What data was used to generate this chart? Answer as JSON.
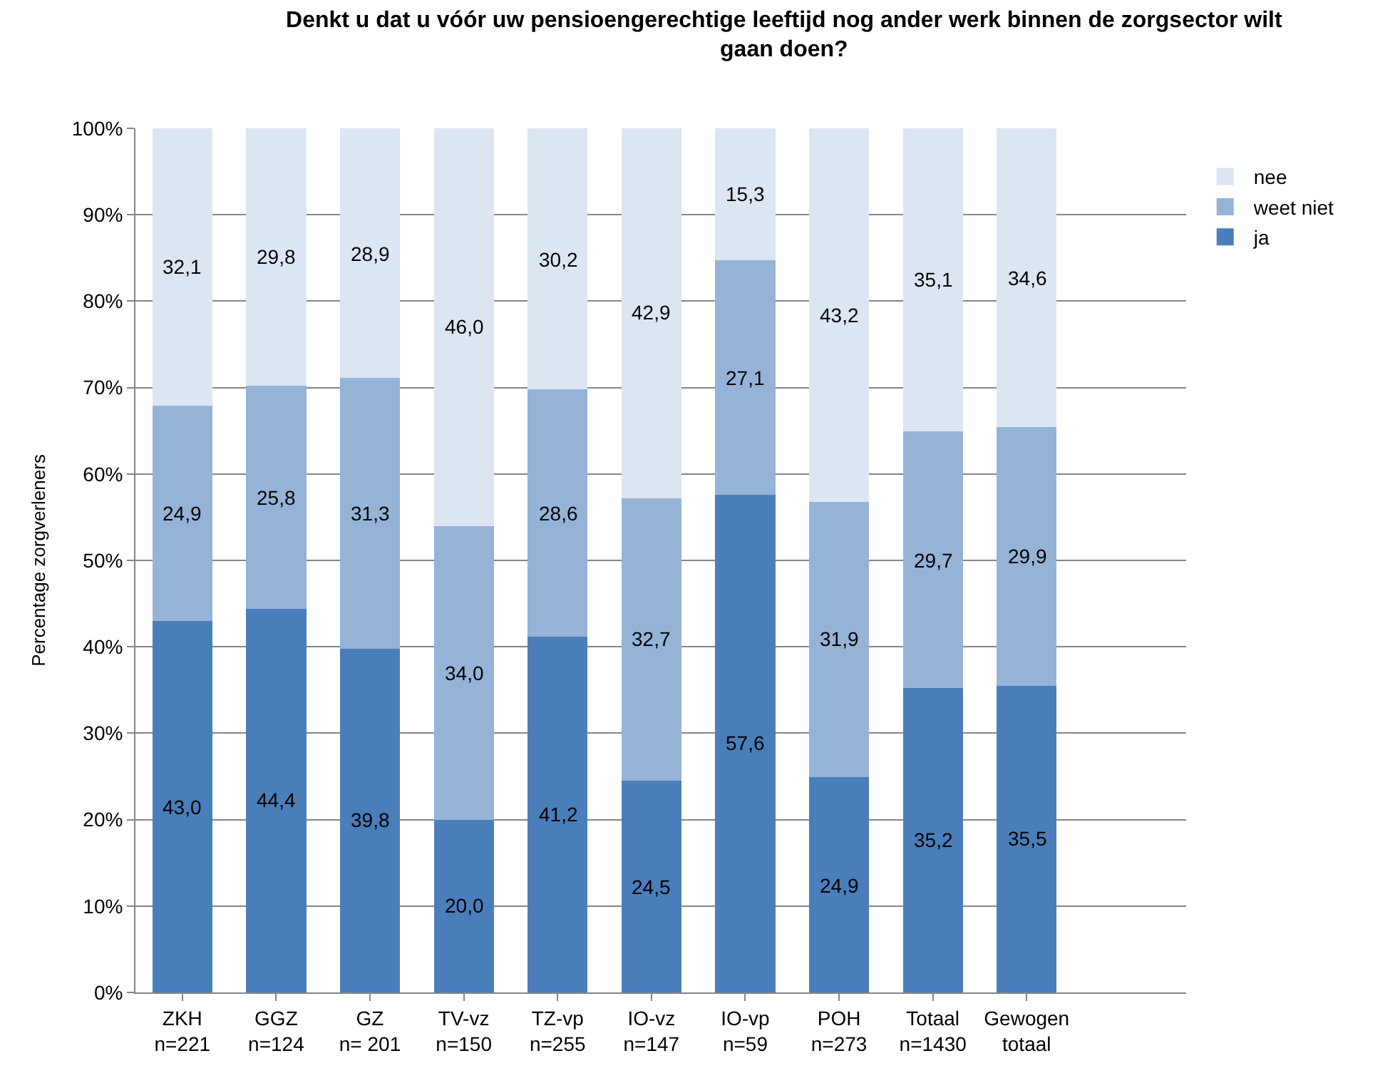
{
  "chart_data": {
    "type": "bar",
    "stacked": true,
    "title": "Denkt u dat u vóór uw pensioengerechtige leeftijd nog ander werk binnen de zorgsector wilt gaan doen?",
    "ylabel": "Percentage zorgverleners",
    "categories": [
      "ZKH\nn=221",
      "GGZ\nn=124",
      "GZ\nn= 201",
      "TV-vz\nn=150",
      "TZ-vp\nn=255",
      "IO-vz\nn=147",
      "IO-vp\nn=59",
      "POH\nn=273",
      "Totaal\nn=1430",
      "Gewogen\ntotaal"
    ],
    "series": [
      {
        "name": "ja",
        "color": "#4a7ebb",
        "values": [
          43.0,
          44.4,
          39.8,
          20.0,
          41.2,
          24.5,
          57.6,
          24.9,
          35.2,
          35.5
        ],
        "value_labels": [
          "43,0",
          "44,4",
          "39,8",
          "20,0",
          "41,2",
          "24,5",
          "57,6",
          "24,9",
          "35,2",
          "35,5"
        ]
      },
      {
        "name": "weet niet",
        "color": "#95b3d7",
        "values": [
          24.9,
          25.8,
          31.3,
          34.0,
          28.6,
          32.7,
          27.1,
          31.9,
          29.7,
          29.9
        ],
        "value_labels": [
          "24,9",
          "25,8",
          "31,3",
          "34,0",
          "28,6",
          "32,7",
          "27,1",
          "31,9",
          "29,7",
          "29,9"
        ]
      },
      {
        "name": "nee",
        "color": "#dce6f2",
        "values": [
          32.1,
          29.8,
          28.9,
          46.0,
          30.2,
          42.9,
          15.3,
          43.2,
          35.1,
          34.6
        ],
        "value_labels": [
          "32,1",
          "29,8",
          "28,9",
          "46,0",
          "30,2",
          "42,9",
          "15,3",
          "43,2",
          "35,1",
          "34,6"
        ]
      }
    ],
    "ylim": [
      0,
      100
    ],
    "yticks": [
      {
        "value": 0,
        "label": "0%"
      },
      {
        "value": 10,
        "label": "10%"
      },
      {
        "value": 20,
        "label": "20%"
      },
      {
        "value": 30,
        "label": "30%"
      },
      {
        "value": 40,
        "label": "40%"
      },
      {
        "value": 50,
        "label": "50%"
      },
      {
        "value": 60,
        "label": "60%"
      },
      {
        "value": 70,
        "label": "70%"
      },
      {
        "value": 80,
        "label": "80%"
      },
      {
        "value": 90,
        "label": "90%"
      },
      {
        "value": 100,
        "label": "100%"
      }
    ],
    "grid": "y",
    "legend": "top right"
  }
}
